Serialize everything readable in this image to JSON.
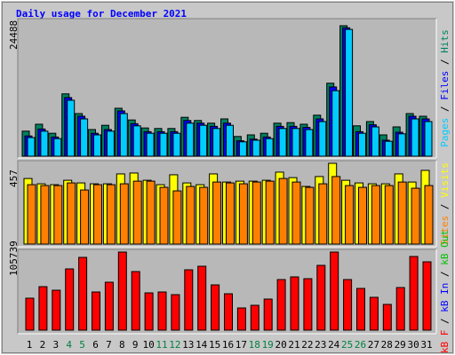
{
  "title": "Daily usage for December 2021",
  "chart_data": [
    {
      "type": "bar",
      "ylim": [
        0,
        24488
      ],
      "yticks": [
        24488
      ],
      "legend_separator": " / ",
      "series": [
        {
          "name": "Hits",
          "color": "#008060",
          "values": [
            4700,
            6000,
            4300,
            11700,
            8000,
            5000,
            5800,
            9000,
            6800,
            5300,
            5200,
            5200,
            7300,
            6700,
            6200,
            7000,
            3700,
            4000,
            4300,
            6200,
            6300,
            6000,
            7700,
            13700,
            24488,
            5700,
            6500,
            4000,
            5500,
            8000,
            7500
          ]
        },
        {
          "name": "Files",
          "color": "#0000ff",
          "values": [
            3800,
            5100,
            3600,
            11000,
            7500,
            4300,
            5000,
            8500,
            6100,
            4600,
            4600,
            4600,
            6700,
            6200,
            5600,
            6200,
            2900,
            3200,
            3600,
            5600,
            5600,
            5400,
            7000,
            13000,
            24100,
            4600,
            5900,
            3000,
            4500,
            7500,
            7000
          ]
        },
        {
          "name": "Pages",
          "color": "#00ccff",
          "values": [
            3500,
            4700,
            3300,
            10500,
            7000,
            4000,
            4700,
            8000,
            5700,
            4300,
            4300,
            4300,
            6200,
            5800,
            5200,
            5800,
            2700,
            3000,
            3300,
            5200,
            5200,
            5000,
            6500,
            12300,
            23800,
            4300,
            5500,
            2800,
            4200,
            7000,
            6500
          ]
        }
      ]
    },
    {
      "type": "bar",
      "ylim": [
        0,
        457
      ],
      "yticks": [
        457
      ],
      "legend_separator": " / ",
      "series": [
        {
          "name": "Visits",
          "color": "#ffff00",
          "values": [
            371,
            341,
            336,
            361,
            346,
            341,
            341,
            397,
            402,
            361,
            336,
            392,
            346,
            336,
            397,
            351,
            356,
            356,
            361,
            407,
            376,
            326,
            382,
            457,
            361,
            346,
            341,
            341,
            397,
            351,
            417
          ]
        },
        {
          "name": "Sites",
          "color": "#ff8000",
          "values": [
            336,
            331,
            331,
            346,
            306,
            336,
            336,
            341,
            356,
            356,
            321,
            301,
            326,
            321,
            351,
            346,
            341,
            351,
            356,
            371,
            351,
            321,
            341,
            382,
            331,
            321,
            331,
            331,
            351,
            316,
            331
          ]
        }
      ]
    },
    {
      "type": "bar",
      "ylim": [
        0,
        105739
      ],
      "yticks": [
        105739
      ],
      "legend_separator": " / ",
      "categories": [
        "1",
        "2",
        "3",
        "4",
        "5",
        "6",
        "7",
        "8",
        "9",
        "10",
        "11",
        "12",
        "13",
        "14",
        "15",
        "16",
        "17",
        "18",
        "19",
        "20",
        "21",
        "22",
        "23",
        "24",
        "25",
        "26",
        "27",
        "28",
        "29",
        "30",
        "31"
      ],
      "category_colors": [
        "#000000",
        "#000000",
        "#000000",
        "#008040",
        "#008040",
        "#000000",
        "#000000",
        "#000000",
        "#000000",
        "#000000",
        "#008040",
        "#008040",
        "#000000",
        "#000000",
        "#000000",
        "#000000",
        "#000000",
        "#008040",
        "#008040",
        "#000000",
        "#000000",
        "#000000",
        "#000000",
        "#000000",
        "#008040",
        "#008040",
        "#000000",
        "#000000",
        "#000000",
        "#000000",
        "#000000"
      ],
      "series": [
        {
          "name": "kB F",
          "color": "#ff0000",
          "values": [
            43260,
            58880,
            54070,
            82910,
            98530,
            51670,
            64890,
            105739,
            79310,
            50470,
            51670,
            48060,
            81710,
            86520,
            61280,
            49270,
            30040,
            33650,
            42060,
            68490,
            72100,
            69690,
            87720,
            105739,
            68490,
            56480,
            44460,
            34850,
            57680,
            99730,
            92520
          ]
        }
      ],
      "legend_only": [
        {
          "name": "kB In",
          "color": "#0000ff"
        },
        {
          "name": "kB Out",
          "color": "#00c000"
        }
      ]
    }
  ]
}
